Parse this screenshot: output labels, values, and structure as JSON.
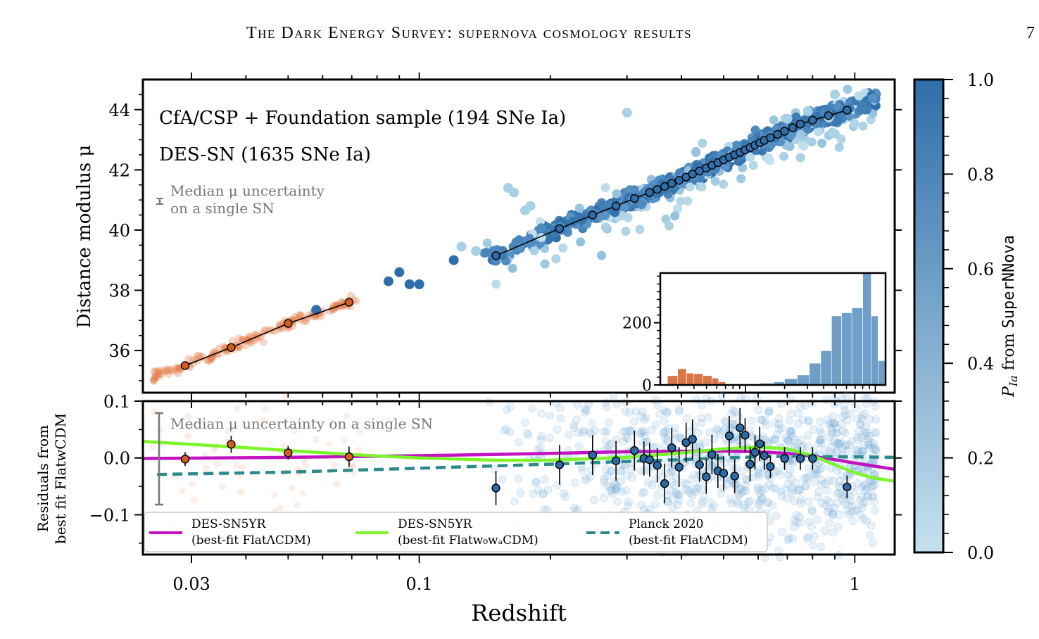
{
  "header": {
    "title": "The Dark Energy Survey: supernova cosmology results",
    "page_number": "7"
  },
  "chart_data": [
    {
      "type": "scatter",
      "panel": "top",
      "ylabel": "Distance modulus μ",
      "xscale": "log",
      "xlim": [
        0.0232,
        1.235
      ],
      "ylim": [
        34.6,
        45.0
      ],
      "yticks": [
        36,
        38,
        40,
        42,
        44
      ],
      "annotations": [
        {
          "text": "CfA/CSP + Foundation sample (194 SNe Ia)",
          "color": "#d35f1c"
        },
        {
          "text": "DES-SN (1635 SNe Ia)",
          "color": "#3b78b0"
        }
      ],
      "median_uncertainty_note": [
        "Median μ uncertainty",
        "on a single SN"
      ],
      "series": [
        {
          "name": "CfA/CSP + Foundation sample (194 SNe Ia)",
          "color": "#d35f1c",
          "binned": {
            "x": [
              0.029,
              0.037,
              0.05,
              0.069
            ],
            "y": [
              35.5,
              36.1,
              36.9,
              37.6
            ]
          }
        },
        {
          "name": "DES-SN (1635 SNe Ia)",
          "color": "#2b6aa6",
          "binned": {
            "x": [
              0.15,
              0.21,
              0.25,
              0.283,
              0.312,
              0.338,
              0.352,
              0.366,
              0.38,
              0.395,
              0.41,
              0.424,
              0.44,
              0.456,
              0.47,
              0.485,
              0.5,
              0.515,
              0.53,
              0.545,
              0.56,
              0.575,
              0.59,
              0.605,
              0.62,
              0.64,
              0.665,
              0.69,
              0.72,
              0.75,
              0.8,
              0.87,
              0.96
            ],
            "y": [
              39.15,
              40.05,
              40.5,
              40.8,
              41.05,
              41.25,
              41.35,
              41.45,
              41.55,
              41.65,
              41.76,
              41.86,
              41.96,
              42.06,
              42.15,
              42.24,
              42.33,
              42.42,
              42.5,
              42.58,
              42.66,
              42.74,
              42.82,
              42.9,
              42.98,
              43.07,
              43.18,
              43.28,
              43.4,
              43.52,
              43.65,
              43.8,
              43.98
            ]
          }
        }
      ],
      "inset": {
        "type": "bar",
        "ytick": [
          0,
          200
        ],
        "ylim": [
          0,
          360
        ],
        "bins_low_z": {
          "color": "#d8764a",
          "x": [
            0.025,
            0.03,
            0.035,
            0.04,
            0.047,
            0.055,
            0.062
          ],
          "values": [
            30,
            52,
            38,
            36,
            30,
            22,
            10
          ]
        },
        "bins_des": {
          "color": "#6f9ec9",
          "x": [
            0.1,
            0.13,
            0.165,
            0.2,
            0.25,
            0.31,
            0.38,
            0.46,
            0.55,
            0.66,
            0.8,
            0.93,
            1.05
          ],
          "values": [
            3,
            6,
            10,
            20,
            32,
            70,
            110,
            222,
            232,
            248,
            360,
            222,
            78
          ]
        }
      }
    },
    {
      "type": "scatter",
      "panel": "bottom",
      "xlabel": "Redshift",
      "ylabel": [
        "Residuals from",
        "best fit FlatwCDM"
      ],
      "xscale": "log",
      "xticks": [
        0.03,
        0.1,
        1
      ],
      "xticklabels": [
        "0.03",
        "0.1",
        "1"
      ],
      "ylim": [
        -0.17,
        0.1
      ],
      "yticks": [
        -0.1,
        0.0,
        0.1
      ],
      "yticklabels": [
        "−0.1",
        "0.0",
        "0.1"
      ],
      "median_uncertainty_note": "Median μ uncertainty on a single SN",
      "binned_low_z": {
        "color": "#d35f1c",
        "x": [
          0.029,
          0.037,
          0.05,
          0.069
        ],
        "y": [
          -0.002,
          0.024,
          0.009,
          0.002
        ],
        "err": [
          0.012,
          0.015,
          0.012,
          0.018
        ]
      },
      "binned_des": {
        "color": "#2b6aa6",
        "x": [
          0.15,
          0.21,
          0.25,
          0.283,
          0.312,
          0.328,
          0.338,
          0.352,
          0.366,
          0.38,
          0.395,
          0.41,
          0.424,
          0.44,
          0.456,
          0.47,
          0.485,
          0.5,
          0.515,
          0.53,
          0.545,
          0.56,
          0.575,
          0.59,
          0.605,
          0.62,
          0.64,
          0.69,
          0.75,
          0.8,
          0.96
        ],
        "y": [
          -0.053,
          -0.012,
          0.005,
          -0.005,
          0.013,
          -0.001,
          -0.003,
          -0.013,
          -0.045,
          0.018,
          -0.016,
          0.027,
          0.033,
          -0.012,
          -0.033,
          0.006,
          -0.023,
          -0.027,
          0.039,
          -0.032,
          0.053,
          0.04,
          -0.011,
          0.01,
          0.025,
          0.004,
          -0.015,
          -0.001,
          -0.001,
          -0.001,
          -0.051
        ],
        "err": [
          0.03,
          0.035,
          0.035,
          0.035,
          0.035,
          0.03,
          0.03,
          0.03,
          0.035,
          0.035,
          0.035,
          0.035,
          0.035,
          0.03,
          0.03,
          0.035,
          0.03,
          0.03,
          0.035,
          0.03,
          0.035,
          0.03,
          0.03,
          0.03,
          0.03,
          0.025,
          0.02,
          0.02,
          0.02,
          0.02,
          0.02
        ]
      },
      "models": [
        {
          "name": "DES-SN5YR (best-fit FlatΛCDM)",
          "color": "#c212c2",
          "style": "solid",
          "x": [
            0.0232,
            0.05,
            0.1,
            0.2,
            0.3,
            0.4,
            0.5,
            0.6,
            0.7,
            0.8,
            0.9,
            1.0,
            1.1,
            1.235
          ],
          "y": [
            -0.001,
            0.001,
            0.004,
            0.008,
            0.011,
            0.012,
            0.012,
            0.011,
            0.008,
            0.003,
            -0.003,
            -0.009,
            -0.014,
            -0.02
          ]
        },
        {
          "name": "DES-SN5YR (best-fit Flatw0waCDM)",
          "color": "#7cf52a",
          "style": "solid",
          "x": [
            0.0232,
            0.03,
            0.04,
            0.05,
            0.07,
            0.1,
            0.15,
            0.2,
            0.3,
            0.4,
            0.5,
            0.6,
            0.7,
            0.8,
            0.9,
            1.0,
            1.1,
            1.235
          ],
          "y": [
            0.029,
            0.024,
            0.018,
            0.013,
            0.006,
            0.0,
            -0.004,
            -0.004,
            0.001,
            0.009,
            0.016,
            0.019,
            0.016,
            0.004,
            -0.012,
            -0.026,
            -0.035,
            -0.041
          ]
        },
        {
          "name": "Planck 2020 (best-fit FlatΛCDM)",
          "color": "#2e8b8b",
          "style": "dashed",
          "x": [
            0.025,
            0.05,
            0.1,
            0.2,
            0.3,
            0.4,
            0.5,
            0.6,
            0.7,
            0.8,
            0.9,
            1.0,
            1.235
          ],
          "y": [
            -0.029,
            -0.025,
            -0.018,
            -0.011,
            -0.006,
            -0.003,
            0.0,
            0.002,
            0.003,
            0.003,
            0.002,
            0.002,
            0.001
          ]
        }
      ],
      "legend": {
        "placement": "lower-left",
        "entries": [
          {
            "line1": "DES-SN5YR",
            "line2": "(best-fit FlatΛCDM)"
          },
          {
            "line1": "DES-SN5YR",
            "line2": "(best-fit Flatw₀wₐCDM)"
          },
          {
            "line1": "Planck 2020",
            "line2": "(best-fit FlatΛCDM)"
          }
        ]
      }
    }
  ],
  "colorbar": {
    "label_prefix": "P",
    "label_sub": "Ia",
    "label_mid": " from ",
    "label_mono": "SuperNNova",
    "ticks": [
      "0.0",
      "0.2",
      "0.4",
      "0.6",
      "0.8",
      "1.0"
    ],
    "color_low": "#c5e1ee",
    "color_high": "#2f6ea9"
  }
}
